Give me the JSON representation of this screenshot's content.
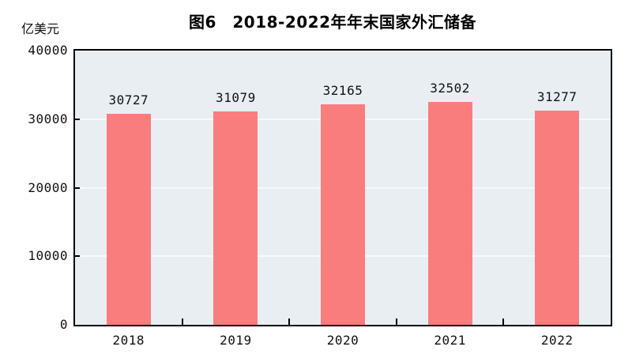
{
  "chart_data": {
    "type": "bar",
    "title": "图6　2018-2022年年末国家外汇储备",
    "unit_label": "亿美元",
    "categories": [
      "2018",
      "2019",
      "2020",
      "2021",
      "2022"
    ],
    "values": [
      30727,
      31079,
      32165,
      32502,
      31277
    ],
    "xlabel": "",
    "ylabel": "亿美元",
    "ylim": [
      0,
      40000
    ],
    "yticks": [
      0,
      10000,
      20000,
      30000,
      40000
    ],
    "grid": "horizontal-major-faint",
    "legend": "none",
    "colors": {
      "bar": "#fa7d7d",
      "plot_background": "#e9eef3",
      "figure_background": "#ffffff",
      "gridline": "#f6f9fb",
      "axis": "#000000",
      "text": "#111111"
    }
  }
}
